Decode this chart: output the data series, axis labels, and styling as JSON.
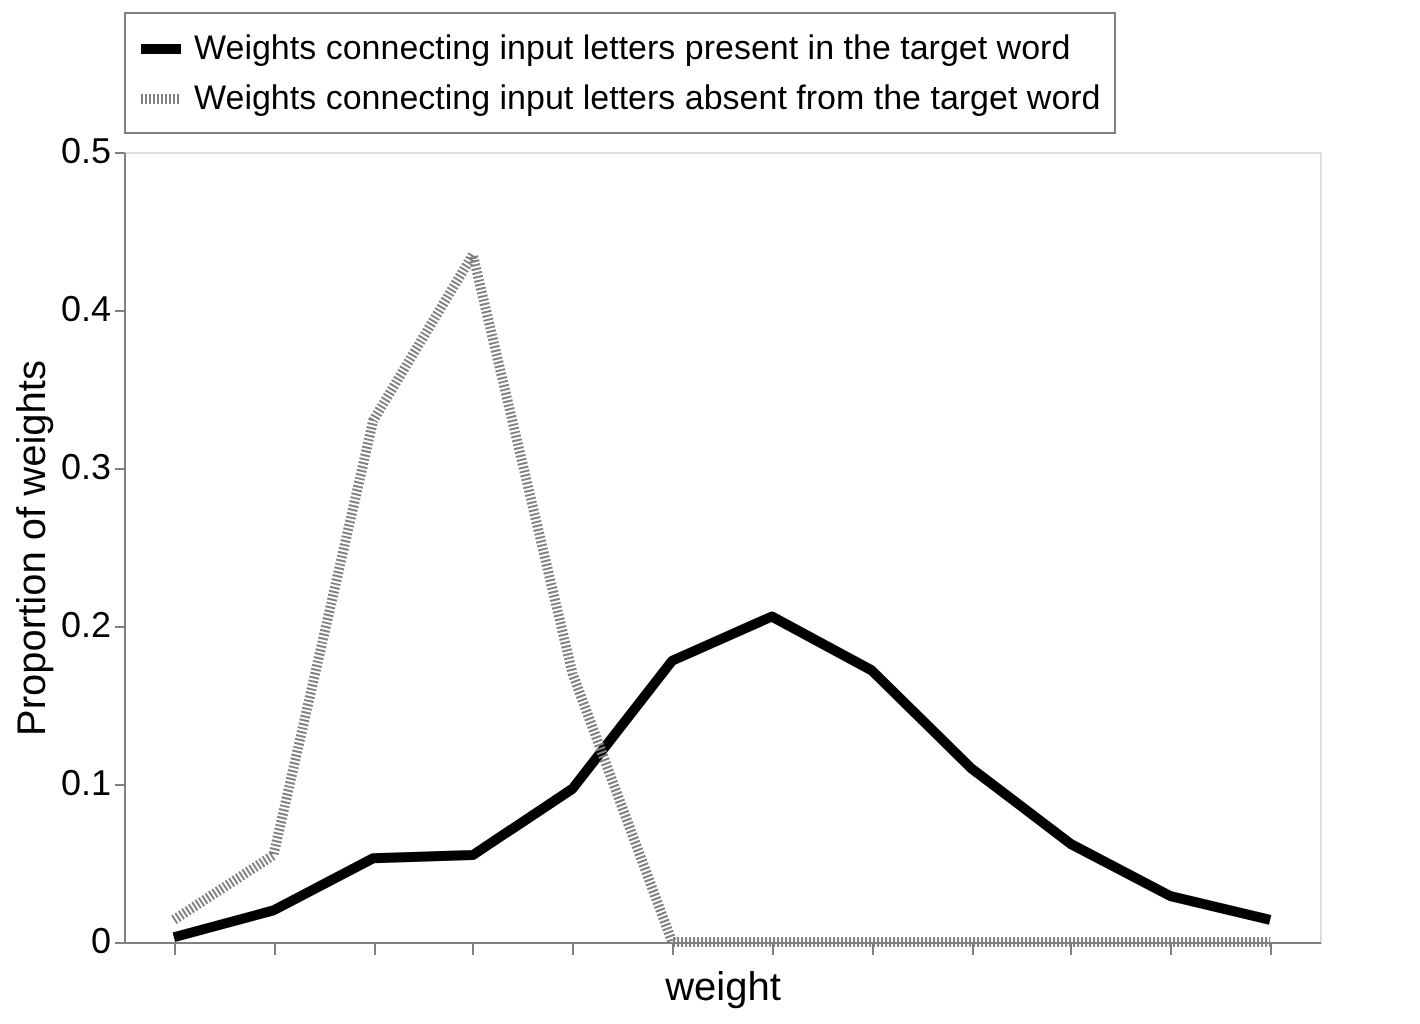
{
  "chart_data": {
    "type": "line",
    "xlabel": "weight",
    "ylabel": "Proportion of weights",
    "categories": [
      null,
      null,
      null,
      null,
      null,
      null,
      null,
      null,
      null,
      null,
      null,
      null
    ],
    "ylim": [
      0,
      0.5
    ],
    "yticks": [
      0,
      0.1,
      0.2,
      0.3,
      0.4,
      0.5
    ],
    "tick_labels": "y",
    "grid": false,
    "legend": "top",
    "marker": "none",
    "series": [
      {
        "name": "Weights connecting input letters present in the target word",
        "color": "#000000",
        "line_style": "solid",
        "values": [
          0.003,
          0.02,
          0.053,
          0.055,
          0.097,
          0.178,
          0.206,
          0.172,
          0.11,
          0.062,
          0.029,
          0.014
        ]
      },
      {
        "name": "Weights connecting input letters absent from the target word",
        "color": "#808080",
        "line_style": "dotted",
        "values": [
          0.014,
          0.055,
          0.33,
          0.435,
          0.17,
          0,
          0,
          0,
          0,
          0,
          0,
          0
        ]
      }
    ]
  }
}
